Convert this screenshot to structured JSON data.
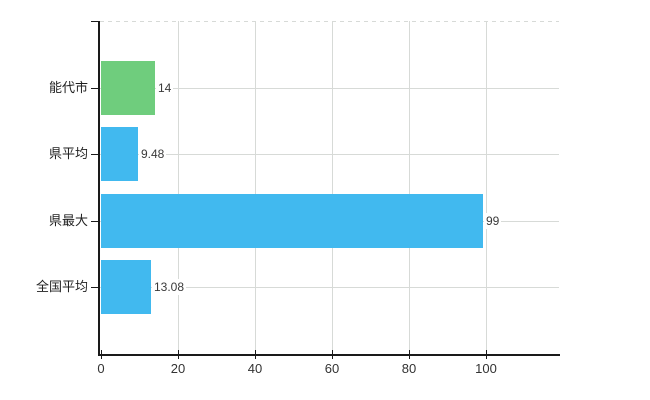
{
  "chart_data": {
    "type": "bar",
    "orientation": "horizontal",
    "title": "",
    "xlabel": "",
    "ylabel": "",
    "categories": [
      "能代市",
      "県平均",
      "県最大",
      "全国平均"
    ],
    "values": [
      14,
      9.48,
      99,
      13.08
    ],
    "value_labels": [
      "14",
      "9.48",
      "99",
      "13.08"
    ],
    "bar_colors": [
      "#6fcd7d",
      "#41b9ef",
      "#41b9ef",
      "#41b9ef"
    ],
    "x_tick_values": [
      0,
      20,
      40,
      60,
      80,
      100
    ],
    "x_tick_labels": [
      "0",
      "20",
      "40",
      "60",
      "80",
      "100"
    ],
    "xlim": [
      0,
      119.1
    ],
    "grid": true,
    "grid_top_border_style": "dashed",
    "legend": false
  },
  "colors": {
    "background": "#ffffff",
    "bar_blue": "#41b9ef",
    "bar_green": "#6fcd7d",
    "grid": "#d7dad7",
    "axis": "#1a1a1a",
    "category_label": "#1f1f1f",
    "tick_label": "#333333",
    "value_label": "#3a3a3a"
  }
}
